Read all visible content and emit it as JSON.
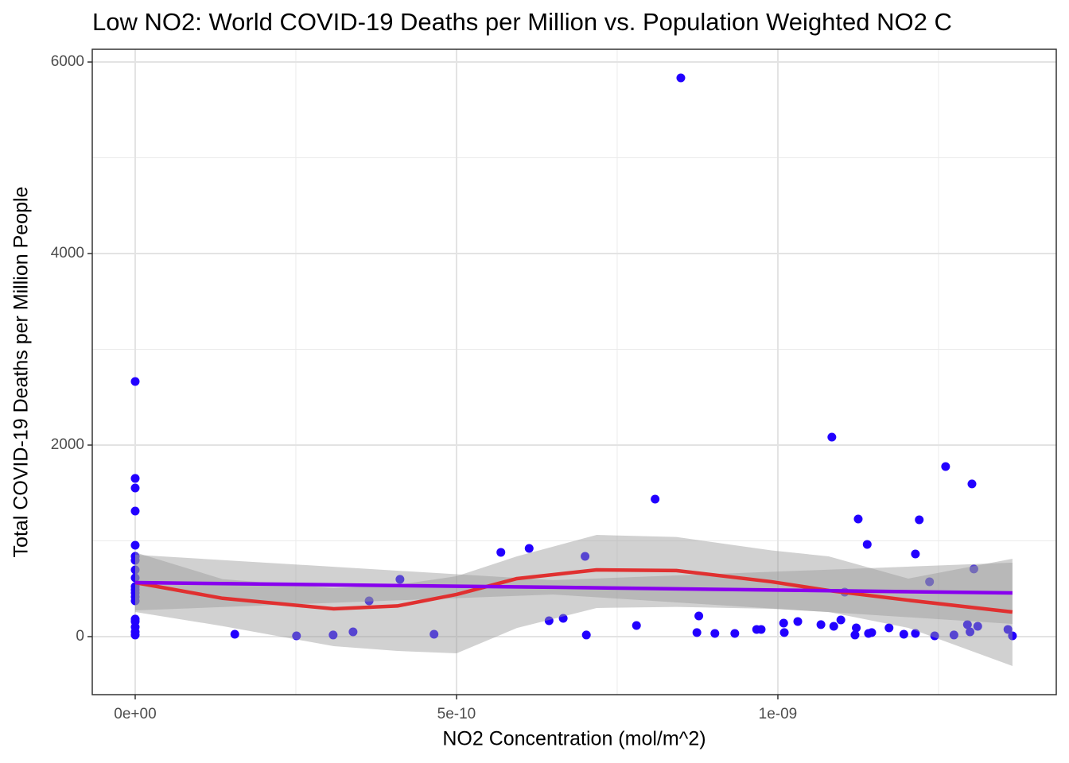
{
  "chart_data": {
    "type": "scatter",
    "title": "Low NO2: World COVID-19 Deaths per Million vs. Population Weighted NO2 C",
    "x_label": "NO2 Concentration (mol/m^2)",
    "y_label": "Total COVID-19 Deaths per Million People",
    "color": "#2200ff",
    "x": [
      0,
      0,
      0,
      0,
      0,
      0,
      0,
      0,
      0,
      0,
      0,
      0,
      0,
      0,
      0,
      0,
      0,
      0,
      0,
      1.55e-10,
      2.51e-10,
      3.08e-10,
      3.39e-10,
      3.64e-10,
      4.12e-10,
      4.65e-10,
      5.69e-10,
      6.13e-10,
      6.44e-10,
      6.66e-10,
      7e-10,
      7.02e-10,
      7.8e-10,
      8.09e-10,
      8.49e-10,
      8.74e-10,
      8.77e-10,
      9.02e-10,
      9.33e-10,
      9.67e-10,
      9.74e-10,
      1.009e-09,
      1.01e-09,
      1.031e-09,
      1.067e-09,
      1.084e-09,
      1.087e-09,
      1.098e-09,
      1.104e-09,
      1.12e-09,
      1.122e-09,
      1.125e-09,
      1.139e-09,
      1.141e-09,
      1.146e-09,
      1.173e-09,
      1.196e-09,
      1.214e-09,
      1.214e-09,
      1.22e-09,
      1.236e-09,
      1.244e-09,
      1.261e-09,
      1.274e-09,
      1.295e-09,
      1.299e-09,
      1.302e-09,
      1.305e-09,
      1.311e-09,
      1.358e-09,
      1.365e-09
    ],
    "values": [
      2664,
      1652,
      1552,
      1311,
      954,
      838,
      797,
      697,
      614,
      523,
      490,
      456,
      415,
      373,
      183,
      158,
      100,
      50,
      17,
      25,
      8,
      17,
      50,
      373,
      598,
      25,
      880,
      921,
      166,
      191,
      838,
      17,
      116,
      1436,
      5834,
      42,
      216,
      33,
      33,
      75,
      75,
      141,
      42,
      158,
      125,
      2083,
      108,
      174,
      465,
      17,
      91,
      1228,
      963,
      33,
      42,
      91,
      25,
      33,
      863,
      1220,
      573,
      8,
      1776,
      17,
      125,
      50,
      1594,
      706,
      108,
      75,
      8
    ],
    "fits": [
      {
        "color": "#e03030",
        "x": [
          0,
          1.36e-10,
          3.09e-10,
          4.08e-10,
          5e-10,
          5.94e-10,
          7.18e-10,
          8.42e-10,
          9.9e-10,
          1.079e-09,
          1.203e-09,
          1.365e-09
        ],
        "values": [
          564,
          400,
          290,
          320,
          440,
          606,
          697,
          690,
          573,
          481,
          380,
          257
        ],
        "lower": [
          257,
          110,
          -100,
          -150,
          -174,
          90,
          299,
          310,
          290,
          257,
          91,
          -307
        ],
        "upper": [
          880,
          600,
          506,
          540,
          631,
          838,
          1062,
          1040,
          900,
          838,
          606,
          813
        ]
      },
      {
        "color": "#8800ee",
        "x": [
          0,
          6.5e-10,
          1.365e-09
        ],
        "values": [
          564,
          515,
          456
        ],
        "lower": [
          274,
          440,
          133
        ],
        "upper": [
          855,
          590,
          772
        ]
      }
    ],
    "xlim": [
      -6.68e-11,
      1.4332e-09
    ],
    "ylim": [
      -606,
      6133
    ],
    "xticks": [
      {
        "value": 0,
        "label": "0e+00"
      },
      {
        "value": 5e-10,
        "label": "5e-10"
      },
      {
        "value": 1e-09,
        "label": "1e-09"
      }
    ],
    "yticks": [
      0,
      2000,
      4000,
      6000
    ],
    "x_minor_grid": [
      2.5e-10,
      7.5e-10,
      1.25e-09
    ],
    "y_minor_grid": [
      1000,
      3000,
      5000
    ],
    "grid": true
  }
}
